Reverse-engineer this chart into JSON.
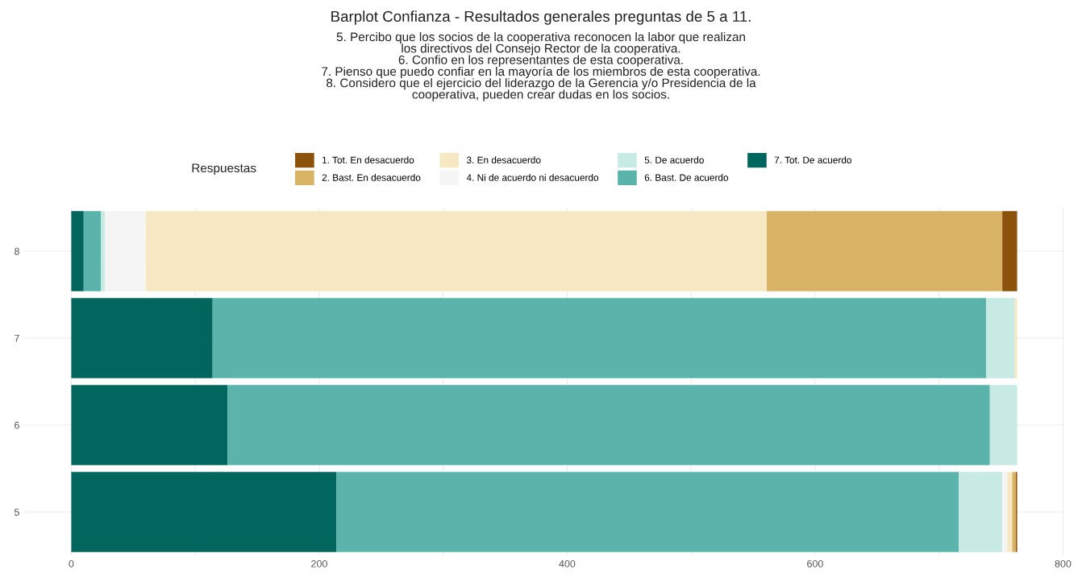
{
  "chart_data": {
    "type": "bar",
    "orientation": "horizontal",
    "stacked": true,
    "title": "Barplot Confianza - Resultados generales preguntas de 5 a 11.",
    "subtitle": "5. Percibo que los socios de la cooperativa reconocen la labor que realizan\nlos directivos del Consejo Rector de la cooperativa.\n6. Confio en los representantes de esta cooperativa.\n7. Pienso que puedo confiar en la mayoría de los miembros de esta cooperativa.\n8. Considero que el ejercicio del liderazgo de la Gerencia y/o Presidencia de la\ncooperativa, pueden crear dudas en los socios.",
    "legend_title": "Respuestas",
    "legend": "top",
    "categories": [
      "8",
      "7",
      "6",
      "5"
    ],
    "series": [
      {
        "name": "7. Tot. De acuerdo",
        "color": "#01665e",
        "values": [
          10,
          114,
          126,
          214
        ]
      },
      {
        "name": "6. Bast. De acuerdo",
        "color": "#5ab4ac",
        "values": [
          14,
          624,
          615,
          502
        ]
      },
      {
        "name": "5. De acuerdo",
        "color": "#c7eae5",
        "values": [
          3,
          23,
          22,
          35
        ]
      },
      {
        "name": "4. Ni de acuerdo ni desacuerdo",
        "color": "#f5f5f5",
        "values": [
          33,
          0,
          0,
          4
        ]
      },
      {
        "name": "3. En desacuerdo",
        "color": "#f6e8c3",
        "values": [
          501,
          2,
          0,
          4
        ]
      },
      {
        "name": "2. Bast. En desacuerdo",
        "color": "#d8b365",
        "values": [
          190,
          0,
          0,
          3
        ]
      },
      {
        "name": "1. Tot. En desacuerdo",
        "color": "#8c510a",
        "values": [
          12,
          0,
          0,
          1
        ]
      }
    ],
    "xlim": [
      -38,
      801
    ],
    "xticks": [
      0,
      {
        "value": 100,
        "label": null
      },
      200,
      {
        "value": 300,
        "label": null
      },
      400,
      {
        "value": 500,
        "label": null
      },
      600,
      {
        "value": 700,
        "label": null
      },
      800
    ],
    "grid": true
  }
}
